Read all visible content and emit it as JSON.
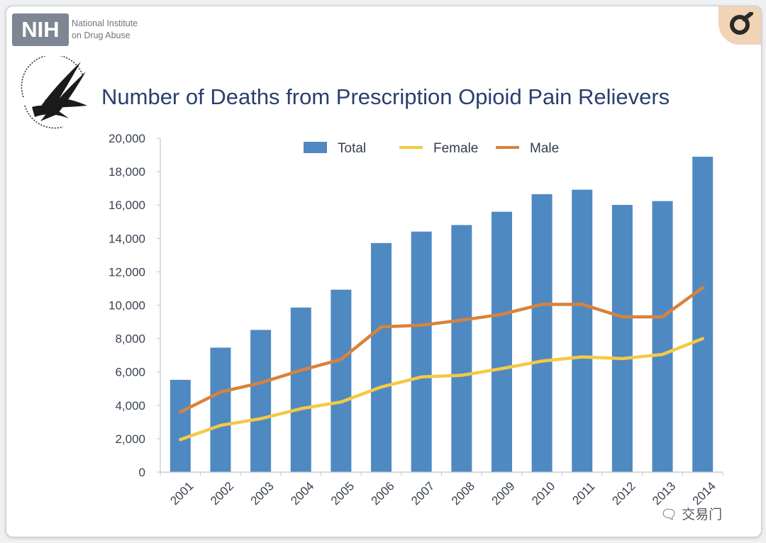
{
  "branding": {
    "nih_logo": "NIH",
    "institute_line1": "National Institute",
    "institute_line2": "on Drug Abuse",
    "seal_icon": "hhs-eagle-seal-icon",
    "corner_icon": "corner-o-badge-icon"
  },
  "watermark": "交易门",
  "colors": {
    "total": "#4f89c2",
    "female": "#f6c944",
    "male": "#d9823b",
    "title": "#2a3f6e"
  },
  "chart_data": {
    "type": "bar",
    "title": "Number of Deaths from Prescription Opioid Pain Relievers",
    "categories": [
      "2001",
      "2002",
      "2003",
      "2004",
      "2005",
      "2006",
      "2007",
      "2008",
      "2009",
      "2010",
      "2011",
      "2012",
      "2013",
      "2014"
    ],
    "series": [
      {
        "name": "Total",
        "kind": "bar",
        "values": [
          5528,
          7456,
          8517,
          9857,
          10928,
          13723,
          14408,
          14800,
          15597,
          16651,
          16917,
          16007,
          16235,
          18893
        ]
      },
      {
        "name": "Female",
        "kind": "line",
        "values": [
          1950,
          2800,
          3200,
          3800,
          4200,
          5100,
          5700,
          5800,
          6200,
          6650,
          6900,
          6800,
          7050,
          8000
        ]
      },
      {
        "name": "Male",
        "kind": "line",
        "values": [
          3600,
          4800,
          5350,
          6100,
          6750,
          8700,
          8800,
          9100,
          9450,
          10050,
          10050,
          9300,
          9300,
          11050
        ]
      }
    ],
    "y_ticks": [
      "0",
      "2,000",
      "4,000",
      "6,000",
      "8,000",
      "10,000",
      "12,000",
      "14,000",
      "16,000",
      "18,000",
      "20,000"
    ],
    "ylim": [
      0,
      20000
    ],
    "grid": false,
    "legend_position": "top-center"
  }
}
